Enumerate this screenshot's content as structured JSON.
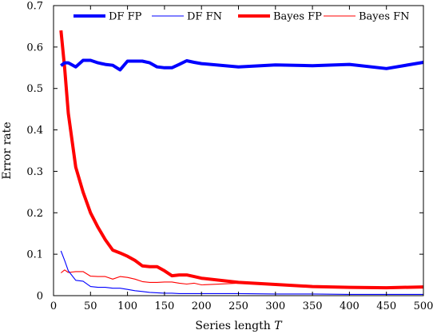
{
  "chart_data": {
    "type": "line",
    "title": "",
    "xlabel": "Series length",
    "xlabel_symbol": "T",
    "ylabel": "Error rate",
    "xlim": [
      0,
      500
    ],
    "ylim": [
      0,
      0.7
    ],
    "xticks": [
      0,
      50,
      100,
      150,
      200,
      250,
      300,
      350,
      400,
      450,
      500
    ],
    "yticks": [
      0,
      0.1,
      0.2,
      0.3,
      0.4,
      0.5,
      0.6,
      0.7
    ],
    "xtick_labels": [
      "0",
      "50",
      "100",
      "150",
      "200",
      "250",
      "300",
      "350",
      "400",
      "450",
      "500"
    ],
    "ytick_labels": [
      "0",
      "0.1",
      "0.2",
      "0.3",
      "0.4",
      "0.5",
      "0.6",
      "0.7"
    ],
    "grid": false,
    "legend_position": "top",
    "series": [
      {
        "name": "DF FP",
        "color": "#0000ff",
        "width": "thick",
        "x": [
          10,
          15,
          20,
          30,
          40,
          50,
          60,
          70,
          80,
          90,
          100,
          110,
          120,
          130,
          140,
          150,
          160,
          170,
          180,
          190,
          200,
          250,
          300,
          350,
          400,
          450,
          500
        ],
        "y": [
          0.555,
          0.562,
          0.562,
          0.552,
          0.568,
          0.568,
          0.562,
          0.558,
          0.556,
          0.545,
          0.566,
          0.566,
          0.566,
          0.562,
          0.552,
          0.55,
          0.55,
          0.558,
          0.567,
          0.563,
          0.56,
          0.552,
          0.557,
          0.555,
          0.558,
          0.548,
          0.563
        ]
      },
      {
        "name": "DF FN",
        "color": "#0000ff",
        "width": "thin",
        "x": [
          10,
          15,
          20,
          30,
          40,
          50,
          60,
          70,
          80,
          90,
          100,
          110,
          120,
          130,
          140,
          150,
          160,
          170,
          180,
          190,
          200,
          250,
          300,
          350,
          400,
          450,
          500
        ],
        "y": [
          0.108,
          0.085,
          0.06,
          0.037,
          0.035,
          0.022,
          0.02,
          0.02,
          0.018,
          0.018,
          0.015,
          0.012,
          0.01,
          0.008,
          0.007,
          0.006,
          0.006,
          0.005,
          0.005,
          0.005,
          0.005,
          0.005,
          0.004,
          0.004,
          0.003,
          0.003,
          0.003
        ]
      },
      {
        "name": "Bayes FP",
        "color": "#ff0000",
        "width": "thick",
        "x": [
          10,
          15,
          20,
          30,
          40,
          50,
          60,
          70,
          80,
          90,
          100,
          110,
          120,
          130,
          140,
          150,
          160,
          170,
          180,
          190,
          200,
          250,
          300,
          350,
          400,
          450,
          500
        ],
        "y": [
          0.64,
          0.55,
          0.44,
          0.31,
          0.25,
          0.2,
          0.165,
          0.135,
          0.11,
          0.103,
          0.095,
          0.085,
          0.072,
          0.07,
          0.07,
          0.06,
          0.048,
          0.05,
          0.05,
          0.046,
          0.042,
          0.032,
          0.027,
          0.022,
          0.02,
          0.019,
          0.021
        ]
      },
      {
        "name": "Bayes FN",
        "color": "#ff0000",
        "width": "thin",
        "x": [
          10,
          15,
          20,
          30,
          40,
          50,
          60,
          70,
          80,
          90,
          100,
          110,
          120,
          130,
          140,
          150,
          160,
          170,
          180,
          190,
          200,
          250,
          300,
          350,
          400,
          450,
          500
        ],
        "y": [
          0.055,
          0.062,
          0.056,
          0.058,
          0.058,
          0.047,
          0.046,
          0.046,
          0.04,
          0.046,
          0.044,
          0.04,
          0.034,
          0.032,
          0.032,
          0.033,
          0.033,
          0.03,
          0.028,
          0.03,
          0.026,
          0.03,
          0.025,
          0.022,
          0.02,
          0.018,
          0.019
        ]
      }
    ]
  }
}
